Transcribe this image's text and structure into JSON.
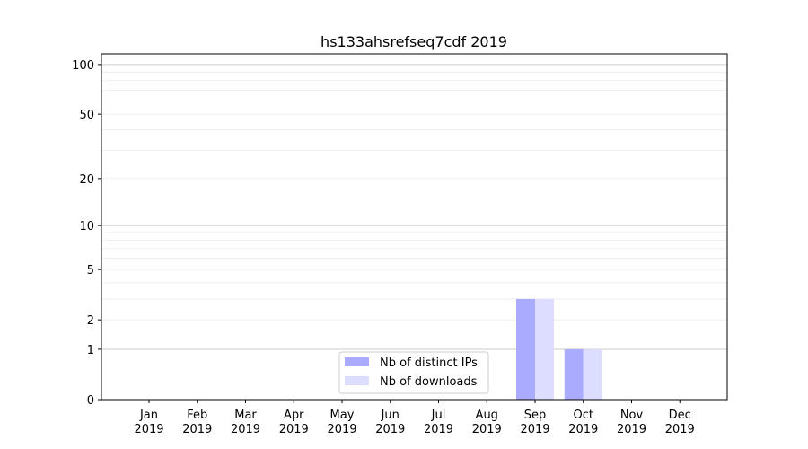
{
  "chart_data": {
    "type": "bar",
    "title": "hs133ahsrefseq7cdf 2019",
    "xlabel": "",
    "ylabel": "",
    "categories": [
      "Jan\n2019",
      "Feb\n2019",
      "Mar\n2019",
      "Apr\n2019",
      "May\n2019",
      "Jun\n2019",
      "Jul\n2019",
      "Aug\n2019",
      "Sep\n2019",
      "Oct\n2019",
      "Nov\n2019",
      "Dec\n2019"
    ],
    "series": [
      {
        "name": "Nb of distinct IPs",
        "color": "#aaaaff",
        "values": [
          0,
          0,
          0,
          0,
          0,
          0,
          0,
          0,
          3,
          1,
          0,
          0
        ]
      },
      {
        "name": "Nb of downloads",
        "color": "#ddddff",
        "values": [
          0,
          0,
          0,
          0,
          0,
          0,
          0,
          0,
          3,
          1,
          0,
          0
        ]
      }
    ],
    "yscale": "log(1+y)",
    "ylim": [
      0,
      116
    ],
    "yticks": [
      0,
      1,
      2,
      5,
      10,
      20,
      50,
      100
    ],
    "grid": true,
    "legend": "lower-center"
  }
}
